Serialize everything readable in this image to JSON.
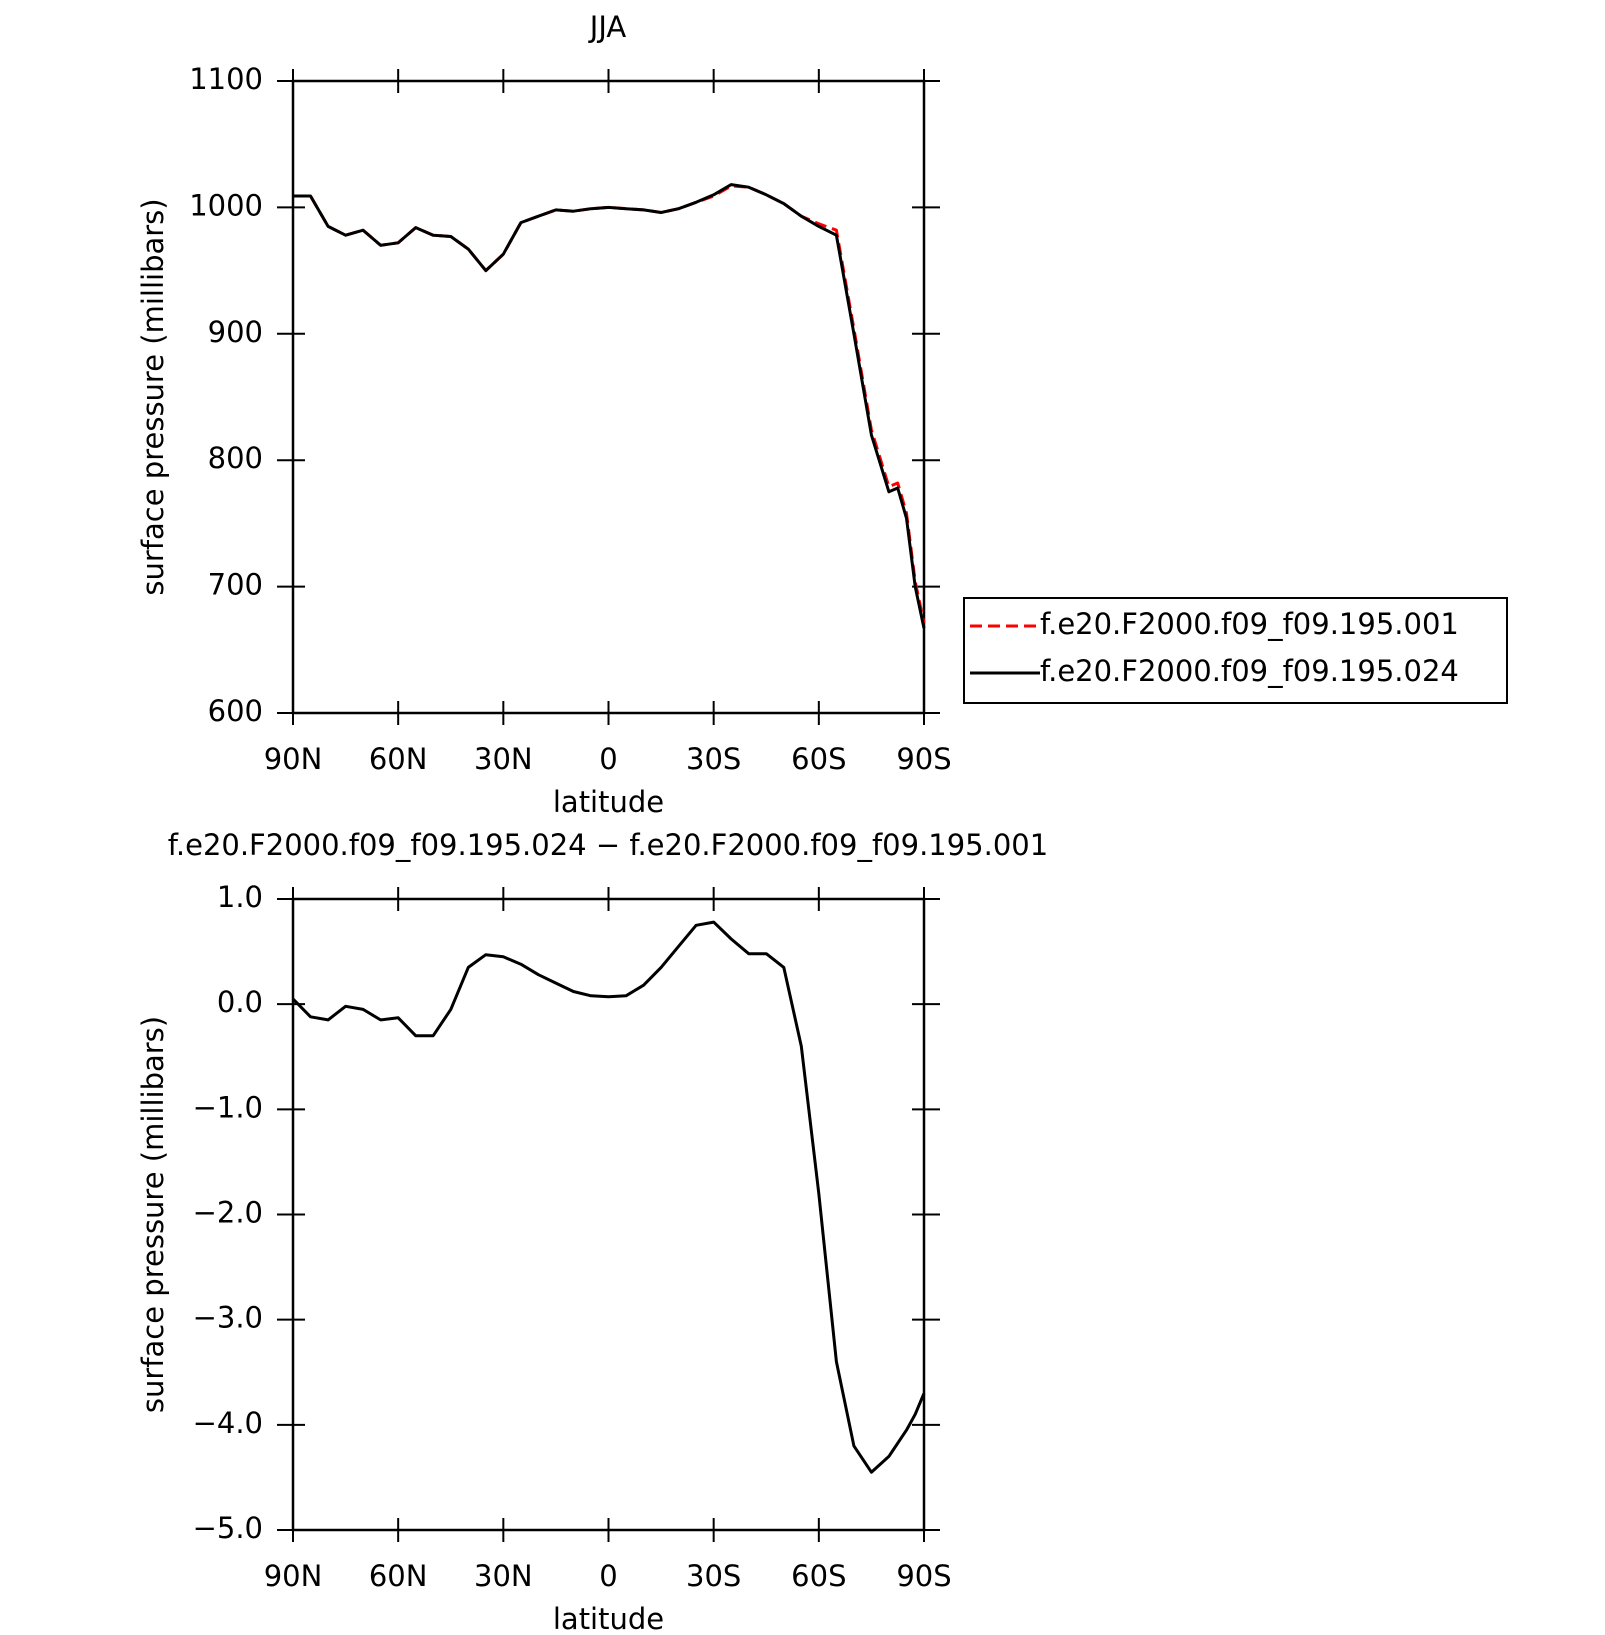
{
  "chart_data": [
    {
      "type": "line",
      "title": "JJA",
      "xlabel": "latitude",
      "ylabel": "surface pressure (millibars)",
      "x": [
        90,
        85,
        80,
        75,
        70,
        65,
        60,
        55,
        50,
        45,
        40,
        35,
        30,
        25,
        20,
        15,
        10,
        5,
        0,
        -5,
        -10,
        -15,
        -20,
        -25,
        -30,
        -35,
        -40,
        -45,
        -50,
        -55,
        -60,
        -65,
        -70,
        -75,
        -80,
        -82.5,
        -85,
        -87.5,
        -90
      ],
      "xlim": [
        90,
        -90
      ],
      "xticks": [
        {
          "value": 90,
          "label": "90N"
        },
        {
          "value": 60,
          "label": "60N"
        },
        {
          "value": 30,
          "label": "30N"
        },
        0,
        {
          "value": -30,
          "label": "30S"
        },
        {
          "value": -60,
          "label": "60S"
        },
        {
          "value": -90,
          "label": "90S"
        }
      ],
      "ylim": [
        600,
        1100
      ],
      "yticks": [
        600,
        700,
        800,
        900,
        1000,
        1100
      ],
      "legend": "right",
      "series": [
        {
          "name": "f.e20.F2000.f09_f09.195.001",
          "color": "#ff0000",
          "style": "dashed",
          "values": [
            1009,
            1009,
            985,
            978,
            982,
            970,
            972,
            984,
            978,
            977,
            967,
            950,
            963,
            988,
            993,
            998,
            997,
            999,
            1000,
            999,
            998,
            996,
            999,
            1004,
            1009,
            1017,
            1016,
            1010,
            1003,
            993,
            987,
            982,
            904,
            824,
            779,
            782,
            758,
            704,
            671
          ]
        },
        {
          "name": "f.e20.F2000.f09_f09.195.024",
          "color": "#000000",
          "style": "solid",
          "values": [
            1009,
            1009,
            985,
            978,
            982,
            970,
            972,
            984,
            978,
            977,
            967,
            950,
            963,
            988,
            993,
            998,
            997,
            999,
            1000,
            999,
            998,
            996,
            999,
            1004,
            1010,
            1018,
            1016,
            1010,
            1003,
            993,
            985,
            978,
            900,
            820,
            775,
            778,
            754,
            700,
            667
          ]
        }
      ]
    },
    {
      "type": "line",
      "title": "f.e20.F2000.f09_f09.195.024 − f.e20.F2000.f09_f09.195.001",
      "xlabel": "latitude",
      "ylabel": "surface pressure (millibars)",
      "x": [
        90,
        85,
        80,
        75,
        70,
        65,
        60,
        55,
        50,
        45,
        40,
        35,
        30,
        25,
        20,
        15,
        10,
        5,
        0,
        -5,
        -10,
        -15,
        -20,
        -25,
        -30,
        -35,
        -40,
        -45,
        -50,
        -55,
        -60,
        -65,
        -70,
        -75,
        -80,
        -85,
        -87.5,
        -90
      ],
      "xlim": [
        90,
        -90
      ],
      "xticks": [
        {
          "value": 90,
          "label": "90N"
        },
        {
          "value": 60,
          "label": "60N"
        },
        {
          "value": 30,
          "label": "30N"
        },
        0,
        {
          "value": -30,
          "label": "30S"
        },
        {
          "value": -60,
          "label": "60S"
        },
        {
          "value": -90,
          "label": "90S"
        }
      ],
      "ylim": [
        -5,
        1
      ],
      "yticks": [
        {
          "value": -5,
          "label": "−5.0"
        },
        {
          "value": -4,
          "label": "−4.0"
        },
        {
          "value": -3,
          "label": "−3.0"
        },
        {
          "value": -2,
          "label": "−2.0"
        },
        {
          "value": -1,
          "label": "−1.0"
        },
        {
          "value": 0,
          "label": "0.0"
        },
        {
          "value": 1,
          "label": "1.0"
        }
      ],
      "series": [
        {
          "color": "#000000",
          "style": "solid",
          "values": [
            0.05,
            -0.12,
            -0.15,
            -0.02,
            -0.05,
            -0.15,
            -0.13,
            -0.3,
            -0.3,
            -0.05,
            0.35,
            0.47,
            0.45,
            0.38,
            0.28,
            0.2,
            0.12,
            0.08,
            0.07,
            0.08,
            0.18,
            0.35,
            0.55,
            0.75,
            0.78,
            0.62,
            0.48,
            0.48,
            0.35,
            -0.4,
            -1.8,
            -3.4,
            -4.2,
            -4.45,
            -4.3,
            -4.05,
            -3.9,
            -3.7
          ]
        }
      ]
    }
  ]
}
